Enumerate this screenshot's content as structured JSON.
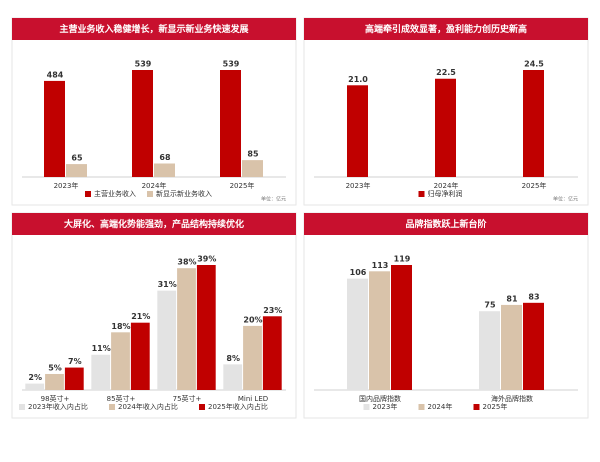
{
  "chart_data": [
    {
      "type": "bar",
      "title": "主营业务收入稳健增长，新显示新业务快速发展",
      "categories": [
        "2023年",
        "2024年",
        "2025年"
      ],
      "series": [
        {
          "name": "主营业务收入",
          "color": "#c00000",
          "values": [
            484,
            539,
            539
          ]
        },
        {
          "name": "新显示新业务收入",
          "color": "#d9c3aa",
          "values": [
            65,
            68,
            85
          ]
        }
      ],
      "note": "单位：亿元"
    },
    {
      "type": "bar",
      "title": "高端牵引成效显著，盈利能力创历史新高",
      "categories": [
        "2023年",
        "2024年",
        "2025年"
      ],
      "series": [
        {
          "name": "归母净利润",
          "color": "#c00000",
          "values": [
            21.0,
            22.5,
            24.5
          ],
          "value_labels": [
            "21.0",
            "22.5",
            "24.5"
          ]
        }
      ],
      "note": "单位：亿元"
    },
    {
      "type": "bar",
      "title": "大屏化、高端化势能强劲，产品结构持续优化",
      "categories": [
        "98英寸+",
        "85英寸+",
        "75英寸+",
        "Mini LED"
      ],
      "series": [
        {
          "name": "2023年收入内占比",
          "color": "#e3e3e3",
          "values": [
            2,
            11,
            31,
            8
          ],
          "value_labels": [
            "2%",
            "11%",
            "31%",
            "8%"
          ]
        },
        {
          "name": "2024年收入内占比",
          "color": "#d9c3aa",
          "values": [
            5,
            18,
            38,
            20
          ],
          "value_labels": [
            "5%",
            "18%",
            "38%",
            "20%"
          ]
        },
        {
          "name": "2025年收入内占比",
          "color": "#c00000",
          "values": [
            7,
            21,
            39,
            23
          ],
          "value_labels": [
            "7%",
            "21%",
            "39%",
            "23%"
          ]
        }
      ]
    },
    {
      "type": "bar",
      "title": "品牌指数跃上新台阶",
      "categories": [
        "国内品牌指数",
        "海外品牌指数"
      ],
      "series": [
        {
          "name": "2023年",
          "color": "#e3e3e3",
          "values": [
            106,
            75
          ]
        },
        {
          "name": "2024年",
          "color": "#d9c3aa",
          "values": [
            113,
            81
          ]
        },
        {
          "name": "2025年",
          "color": "#c00000",
          "values": [
            119,
            83
          ]
        }
      ]
    }
  ]
}
